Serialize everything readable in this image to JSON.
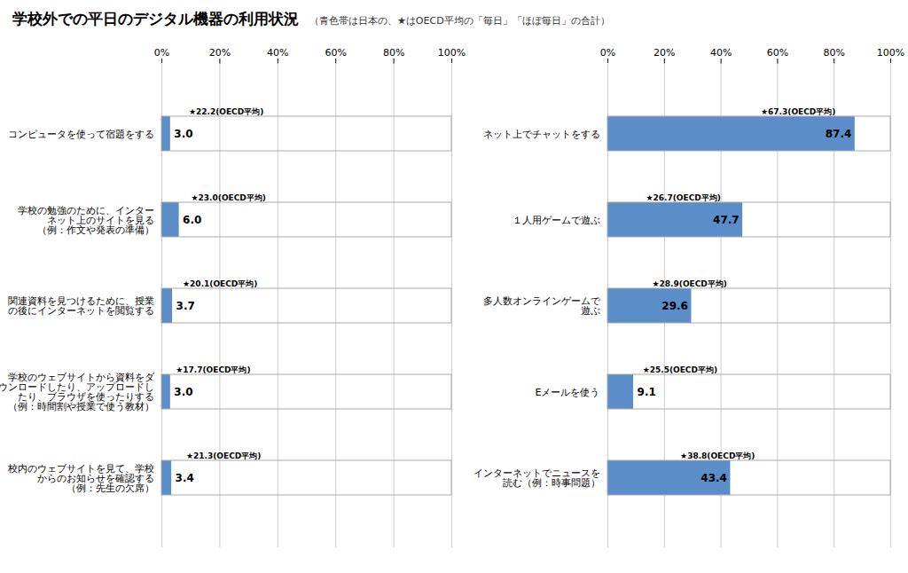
{
  "chart_data": [
    {
      "type": "bar",
      "orientation": "horizontal",
      "title": "学校外での平日のデジタル機器の利用状況",
      "subtitle": "（青色帯は日本の、★はOECD平均の「毎日」「ほぼ毎日」の合計）",
      "categories": [
        "コンピュータを使って宿題をする",
        "学校の勉強のために、インター\nネット上のサイトを見る\n（例：作文や発表の準備）",
        "関連資料を見つけるために、授業\nの後にインターネットを閲覧する",
        "学校のウェブサイトから資料をダ\nウンロードしたり、アップロードし\nたり、ブラウザを使ったりする\n（例：時間割や授業で使う教材）",
        "校内のウェブサイトを見て、学校\nからのお知らせを確認する\n（例：先生の欠席）"
      ],
      "values": [
        3.0,
        6.0,
        3.7,
        3.0,
        3.4
      ],
      "value_labels": [
        "3.0",
        "6.0",
        "3.7",
        "3.0",
        "3.4"
      ],
      "data_labels": true,
      "annotations": [
        {
          "text": "★22.2(OECD平均)",
          "x": 22.2
        },
        {
          "text": "★23.0(OECD平均)",
          "x": 23.0
        },
        {
          "text": "★20.1(OECD平均)",
          "x": 20.1
        },
        {
          "text": "★17.7(OECD平均)",
          "x": 17.7
        },
        {
          "text": "★21.3(OECD平均)",
          "x": 21.3
        }
      ],
      "color": "#5B8DC9",
      "xlim": [
        0,
        100
      ],
      "xticks": [
        {
          "value": 0,
          "label": "0%"
        },
        {
          "value": 20,
          "label": "20%"
        },
        {
          "value": 40,
          "label": "40%"
        },
        {
          "value": 60,
          "label": "60%"
        },
        {
          "value": 80,
          "label": "80%"
        },
        {
          "value": 100,
          "label": "100%"
        }
      ],
      "grid": true
    },
    {
      "type": "bar",
      "orientation": "horizontal",
      "categories": [
        "ネット上でチャットをする",
        "１人用ゲームで遊ぶ",
        "多人数オンラインゲームで\n遊ぶ",
        "Eメールを使う",
        "インターネットでニュースを\n読む（例：時事問題）"
      ],
      "values": [
        87.4,
        47.7,
        29.6,
        9.1,
        43.4
      ],
      "value_labels": [
        "87.4",
        "47.7",
        "29.6",
        "9.1",
        "43.4"
      ],
      "data_labels": true,
      "annotations": [
        {
          "text": "★67.3(OECD平均)",
          "x": 67.3
        },
        {
          "text": "★26.7(OECD平均)",
          "x": 26.7
        },
        {
          "text": "★28.9(OECD平均)",
          "x": 28.9
        },
        {
          "text": "★25.5(OECD平均)",
          "x": 25.5
        },
        {
          "text": "★38.8(OECD平均)",
          "x": 38.8
        }
      ],
      "color": "#5B8DC9",
      "xlim": [
        0,
        100
      ],
      "xticks": [
        {
          "value": 0,
          "label": "0%"
        },
        {
          "value": 20,
          "label": "20%"
        },
        {
          "value": 40,
          "label": "40%"
        },
        {
          "value": 60,
          "label": "60%"
        },
        {
          "value": 80,
          "label": "80%"
        },
        {
          "value": 100,
          "label": "100%"
        }
      ],
      "grid": true
    }
  ]
}
